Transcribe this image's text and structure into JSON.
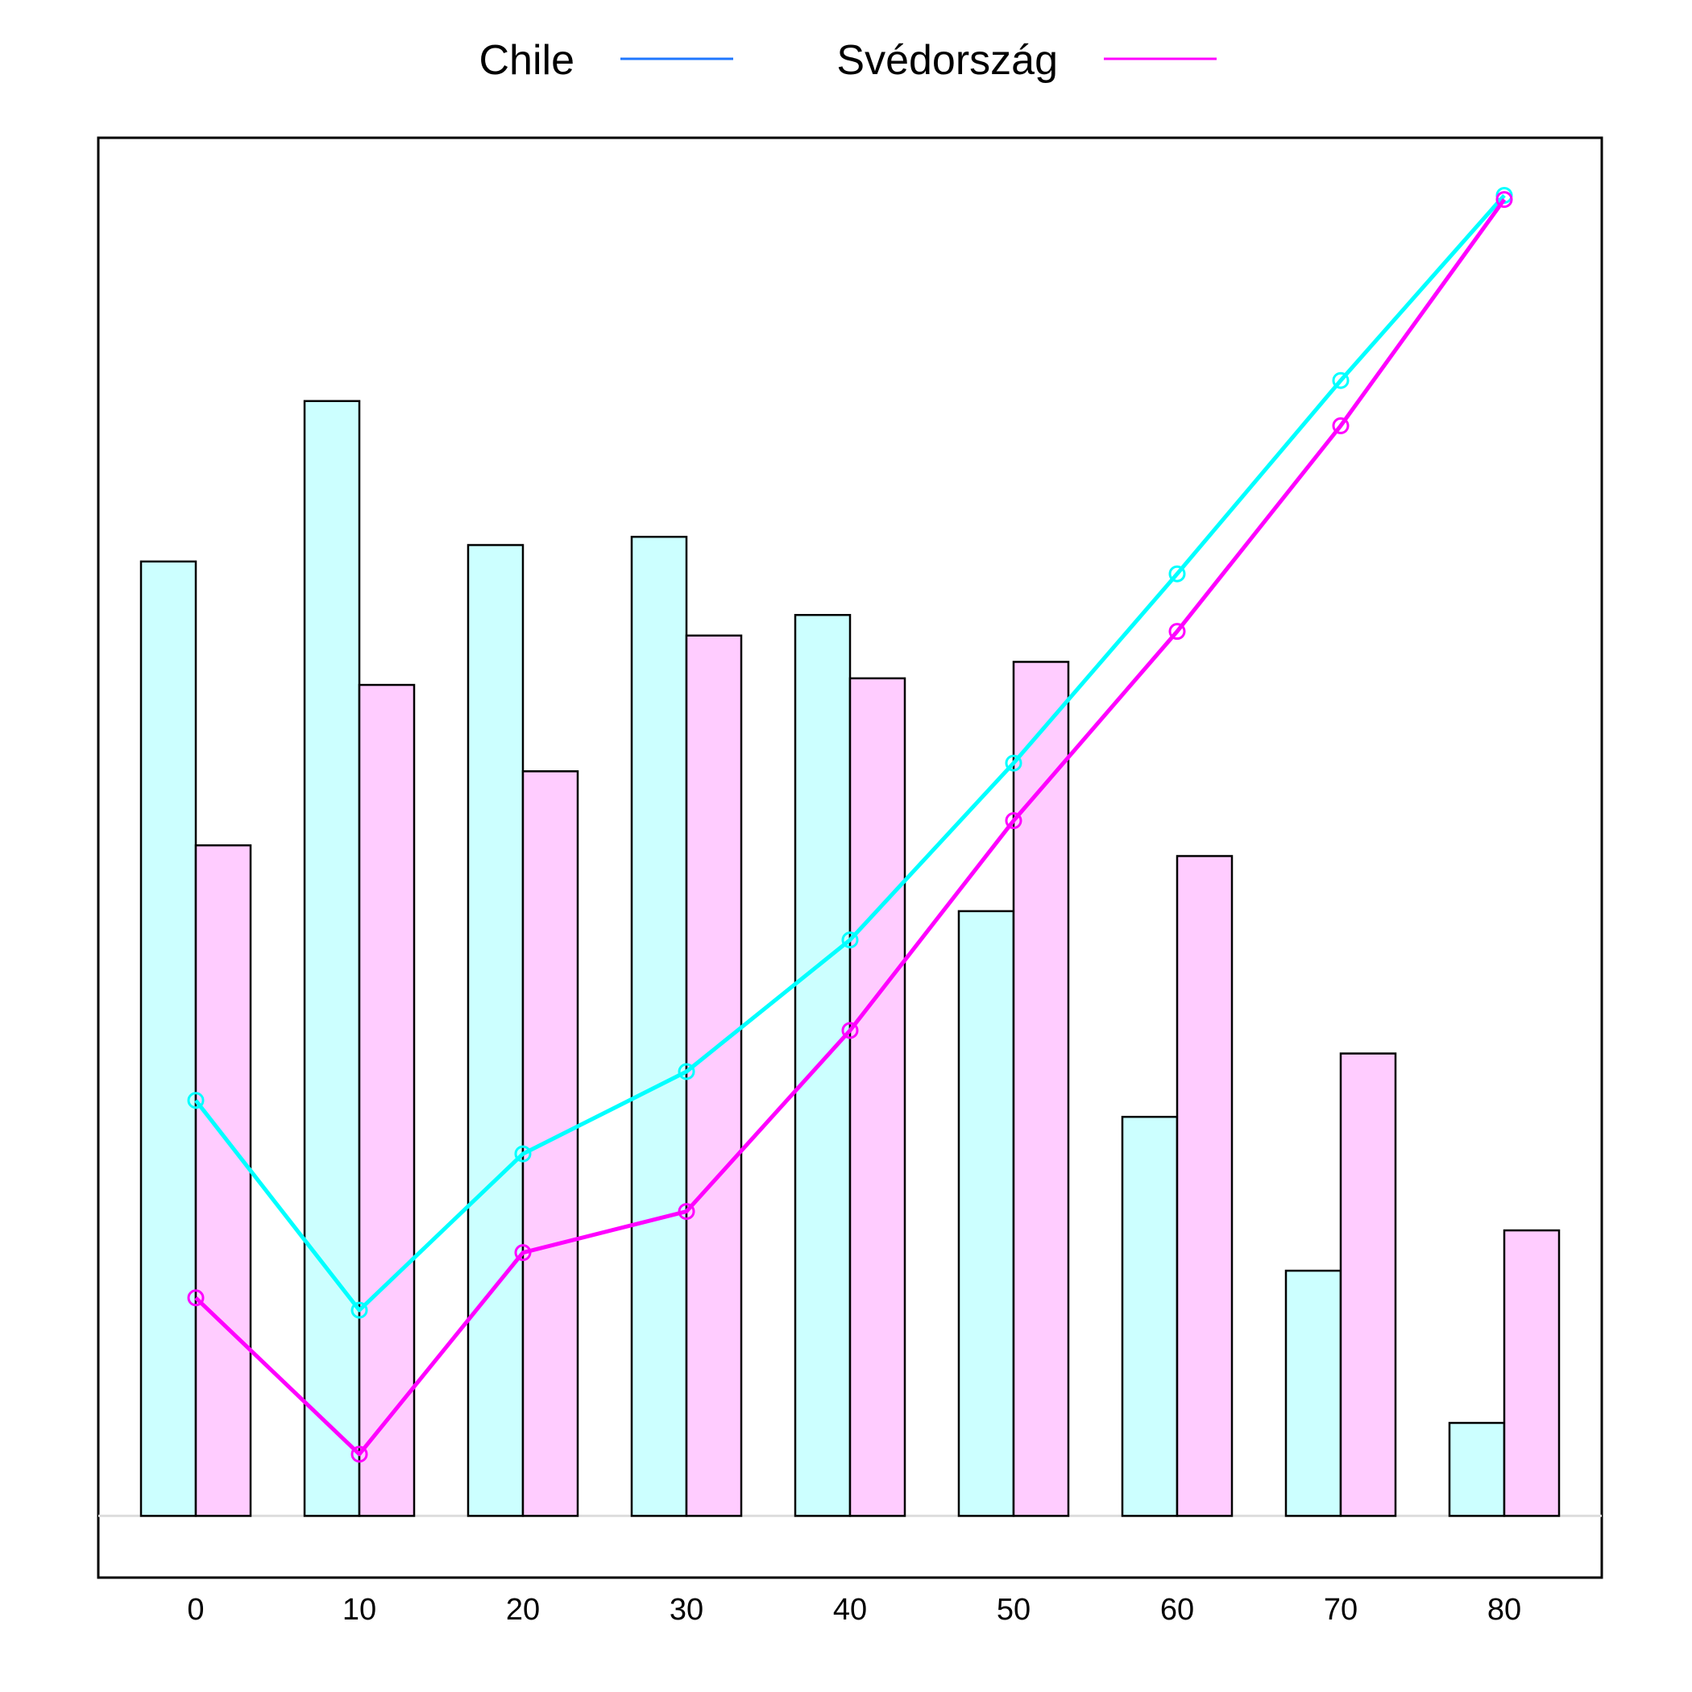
{
  "chart_data": {
    "type": "bar+line",
    "categories": [
      "0",
      "10",
      "20",
      "30",
      "40",
      "50",
      "60",
      "70",
      "80"
    ],
    "ylim": [
      -0.75,
      16.75
    ],
    "grid": false,
    "legend": {
      "placement": "top-center"
    },
    "series": [
      {
        "name": "Chile",
        "legend_color": "#1f77ff",
        "bar_fill": "#ccffff",
        "line_color": "#00ffff",
        "bar_values": [
          11.6,
          13.55,
          11.8,
          11.9,
          10.95,
          7.35,
          4.85,
          2.98,
          1.13
        ],
        "line_values": [
          5.05,
          2.5,
          4.4,
          5.4,
          7.0,
          9.15,
          11.45,
          13.8,
          16.05
        ]
      },
      {
        "name": "Svédország",
        "legend_color": "#ff00ff",
        "bar_fill": "#ffccff",
        "line_color": "#ff00ff",
        "bar_values": [
          8.15,
          10.1,
          9.05,
          10.7,
          10.18,
          10.38,
          8.02,
          5.62,
          3.47
        ],
        "line_values": [
          2.65,
          0.75,
          3.2,
          3.7,
          5.9,
          8.45,
          10.75,
          13.25,
          16.0
        ]
      }
    ]
  }
}
